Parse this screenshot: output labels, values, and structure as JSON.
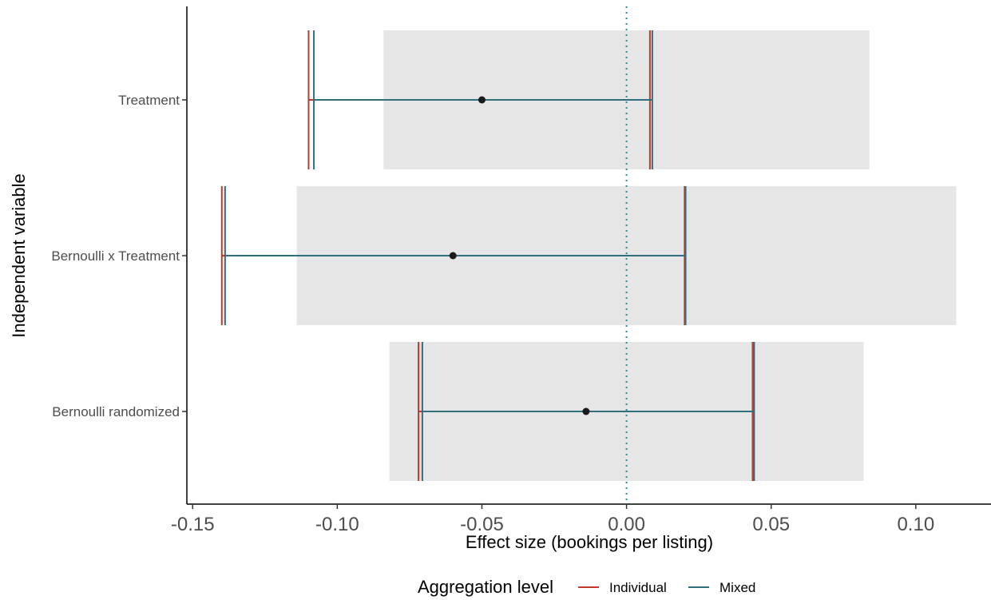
{
  "chart_data": {
    "type": "errorbar",
    "xlabel": "Effect size (bookings per listing)",
    "ylabel": "Independent variable",
    "xlim": [
      -0.152,
      0.126
    ],
    "x_ticks": [
      -0.15,
      -0.1,
      -0.05,
      0.0,
      0.05,
      0.1
    ],
    "x_tick_labels": [
      "-0.15",
      "-0.10",
      "-0.05",
      "0.00",
      "0.05",
      "0.10"
    ],
    "categories": [
      "Treatment",
      "Bernoulli x Treatment",
      "Bernoulli randomized"
    ],
    "reference_line": {
      "x": 0,
      "style": "dotted",
      "color": "#2a8f8f"
    },
    "point_estimates": [
      -0.05,
      -0.06,
      -0.014
    ],
    "bands": [
      {
        "category": "Treatment",
        "xmin": -0.084,
        "xmax": 0.084
      },
      {
        "category": "Bernoulli x Treatment",
        "xmin": -0.114,
        "xmax": 0.114
      },
      {
        "category": "Bernoulli randomized",
        "xmin": -0.082,
        "xmax": 0.082
      }
    ],
    "series": [
      {
        "name": "Individual",
        "color": "#c0392b",
        "lower": [
          -0.1095,
          -0.1395,
          -0.0715
        ],
        "upper": [
          0.0085,
          0.0205,
          0.044
        ]
      },
      {
        "name": "Mixed",
        "color": "#2e6e7e",
        "lower": [
          -0.1085,
          -0.1392,
          -0.071
        ],
        "upper": [
          0.0085,
          0.02,
          0.0437
        ]
      }
    ],
    "grid": false,
    "legend": {
      "title": "Aggregation level",
      "position": "bottom",
      "items": [
        "Individual",
        "Mixed"
      ]
    },
    "band_color": "#e6e6e6",
    "point_color": "#1a1a1a"
  }
}
